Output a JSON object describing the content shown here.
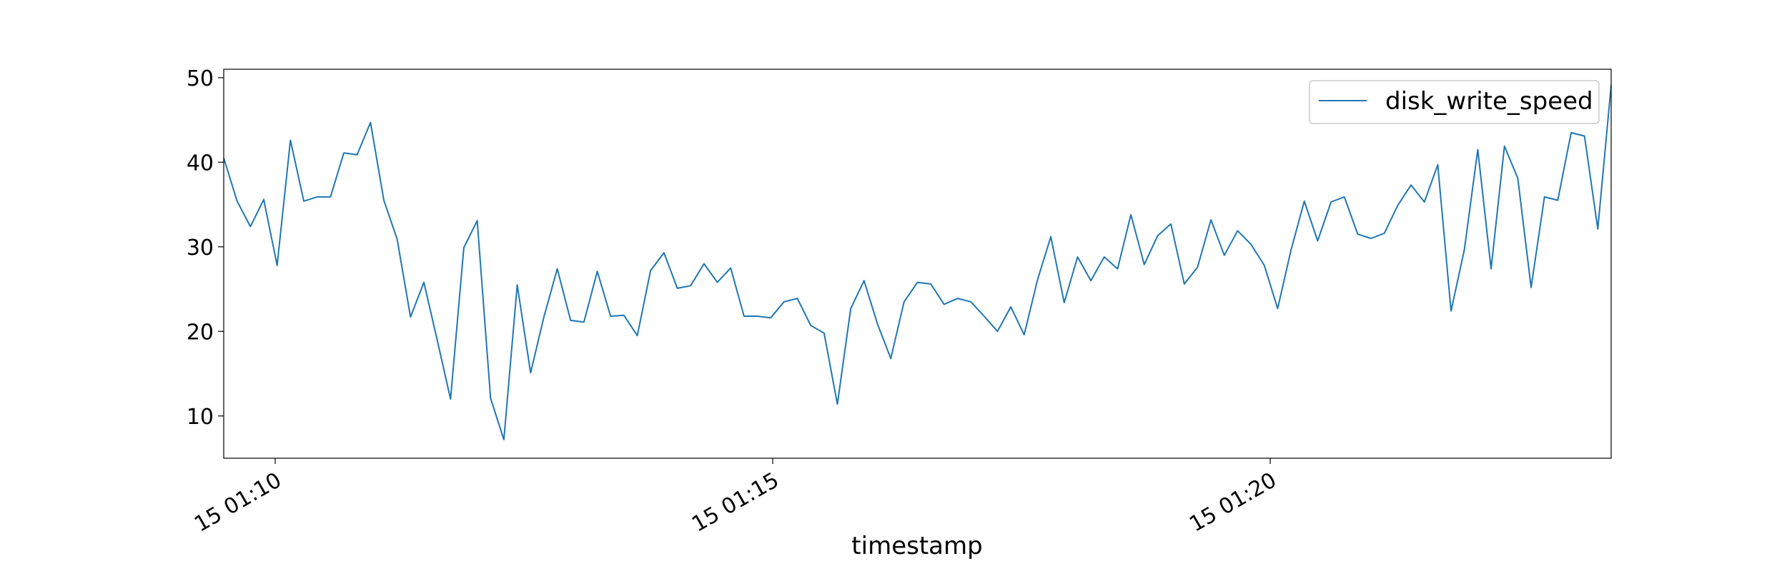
{
  "chart_data": {
    "type": "line",
    "title": "",
    "xlabel": "timestamp",
    "ylabel": "",
    "x_tick_labels": [
      "15 01:10",
      "15 01:15",
      "15 01:20"
    ],
    "y_ticks": [
      10,
      20,
      30,
      40,
      50
    ],
    "ylim": [
      5.0,
      51.0
    ],
    "grid": false,
    "legend_position": "top-right",
    "colors": {
      "series": "#1f77b4"
    },
    "series": [
      {
        "name": "disk_write_speed",
        "values": [
          40.5,
          35.4,
          32.4,
          35.6,
          27.8,
          42.6,
          35.4,
          35.9,
          35.9,
          41.1,
          40.9,
          44.7,
          35.5,
          30.9,
          21.7,
          25.8,
          19.0,
          12.0,
          29.9,
          33.1,
          12.1,
          7.2,
          25.5,
          15.1,
          21.7,
          27.4,
          21.3,
          21.1,
          27.1,
          21.8,
          21.9,
          19.5,
          27.2,
          29.3,
          25.1,
          25.4,
          28.0,
          25.8,
          27.5,
          21.8,
          21.8,
          21.6,
          23.5,
          23.9,
          20.7,
          19.8,
          11.4,
          22.7,
          26.0,
          20.9,
          16.8,
          23.5,
          25.8,
          25.6,
          23.2,
          23.9,
          23.5,
          21.8,
          20.0,
          22.9,
          19.6,
          26.1,
          31.2,
          23.4,
          28.8,
          26.0,
          28.8,
          27.4,
          33.8,
          27.9,
          31.3,
          32.7,
          25.6,
          27.6,
          33.2,
          29.0,
          31.9,
          30.3,
          27.8,
          22.7,
          29.6,
          35.4,
          30.7,
          35.3,
          35.9,
          31.5,
          31.0,
          31.6,
          34.9,
          37.3,
          35.3,
          39.7,
          22.4,
          29.7,
          41.5,
          27.4,
          41.9,
          38.1,
          25.2,
          35.9,
          35.5,
          43.5,
          43.1,
          32.1,
          49.1
        ]
      }
    ]
  }
}
